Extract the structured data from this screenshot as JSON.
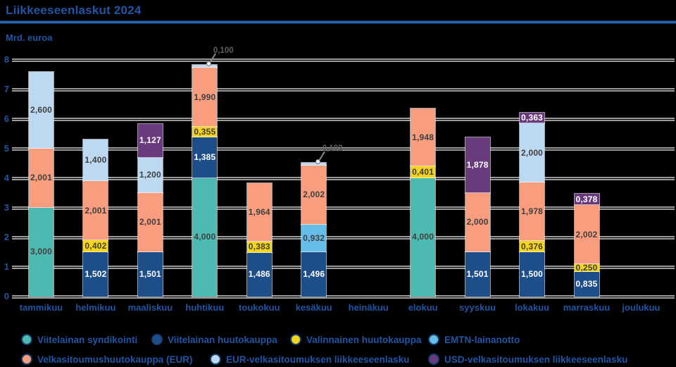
{
  "title": "Liikkeeseenlaskut 2024",
  "y_axis_unit": "Mrd. euroa",
  "colors": {
    "syndication_teal": "#4CBAB1",
    "auction_dark_blue": "#1D4E89",
    "optional_auction_yellow": "#F5D41F",
    "emtn_light_blue": "#66BEE8",
    "tbill_eur_salmon": "#F89D7D",
    "eur_tbill_issue_pale_blue": "#BDD8F1",
    "usd_tbill_issue_purple": "#6A3B7C",
    "text_blue": "#2055A5",
    "grid_gray": "#9A9A9A",
    "value_label_dark": "#3F3F3F",
    "value_label_light": "#FFFFFF"
  },
  "chart_data": {
    "type": "bar",
    "stacked": true,
    "title": "Liikkeeseenlaskut 2024",
    "ylabel": "Mrd. euroa",
    "ylim": [
      0,
      8
    ],
    "y_ticks": [
      0,
      1,
      2,
      3,
      4,
      5,
      6,
      7,
      8
    ],
    "grid": true,
    "legend_position": "bottom",
    "decimal_separator": ",",
    "categories": [
      "tammikuu",
      "helmikuu",
      "maaliskuu",
      "huhtikuu",
      "toukokuu",
      "kesäkuu",
      "heinäkuu",
      "elokuu",
      "syyskuu",
      "lokakuu",
      "marraskuu",
      "joulukuu"
    ],
    "series": [
      {
        "name": "Viitelainan syndikointi",
        "color_key": "syndication_teal",
        "label_color": "dark",
        "values": [
          3.0,
          0,
          0,
          4.0,
          0,
          0,
          0,
          4.0,
          0,
          0,
          0,
          0
        ]
      },
      {
        "name": "Viitelainan huutokauppa",
        "color_key": "auction_dark_blue",
        "label_color": "light",
        "values": [
          0,
          1.502,
          1.501,
          1.385,
          1.486,
          1.496,
          0,
          0,
          1.501,
          1.5,
          0.835,
          0
        ]
      },
      {
        "name": "Valinnainen huutokauppa",
        "color_key": "optional_auction_yellow",
        "label_color": "dark",
        "values": [
          0,
          0.402,
          0,
          0.355,
          0.383,
          0,
          0,
          0.401,
          0,
          0.376,
          0.25,
          0
        ]
      },
      {
        "name": "EMTN-lainanotto",
        "color_key": "emtn_light_blue",
        "label_color": "dark",
        "values": [
          0,
          0,
          0,
          0,
          0,
          0.932,
          0,
          0,
          0,
          0,
          0,
          0
        ]
      },
      {
        "name": "Velkasitoumushuutokauppa (EUR)",
        "color_key": "tbill_eur_salmon",
        "label_color": "dark",
        "values": [
          2.001,
          2.001,
          2.001,
          1.99,
          1.964,
          2.002,
          0,
          1.948,
          2.0,
          1.978,
          2.002,
          0
        ]
      },
      {
        "name": "EUR-velkasitoumuksen liikkeeseenlasku",
        "color_key": "eur_tbill_issue_pale_blue",
        "label_color": "dark",
        "values": [
          2.6,
          1.4,
          1.2,
          0.1,
          0,
          0.102,
          0,
          0,
          0,
          2.0,
          0,
          0
        ]
      },
      {
        "name": "USD-velkasitoumuksen liikkeeseenlasku",
        "color_key": "usd_tbill_issue_purple",
        "label_color": "light",
        "values": [
          0,
          0,
          1.127,
          0,
          0,
          0,
          0,
          0,
          1.878,
          0.363,
          0.378,
          0
        ]
      }
    ],
    "annotations": [
      {
        "month_index": 3,
        "label": "0,100"
      },
      {
        "month_index": 5,
        "label": "0,102"
      }
    ]
  }
}
